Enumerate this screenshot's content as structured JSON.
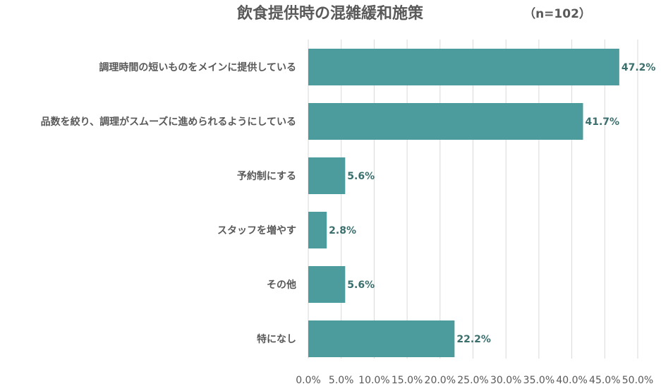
{
  "chart_data": {
    "type": "bar",
    "orientation": "horizontal",
    "title": "飲食提供時の混雑緩和施策",
    "note": "（n=102）",
    "categories": [
      "調理時間の短いものをメインに提供している",
      "品数を絞り、調理がスムーズに進められるようにしている",
      "予約制にする",
      "スタッフを増やす",
      "その他",
      "特になし"
    ],
    "values": [
      47.2,
      41.7,
      5.6,
      2.8,
      5.6,
      22.2
    ],
    "data_labels": [
      "47.2%",
      "41.7%",
      "5.6%",
      "2.8%",
      "5.6%",
      "22.2%"
    ],
    "xlim": [
      0,
      50
    ],
    "xticks": [
      0,
      5,
      10,
      15,
      20,
      25,
      30,
      35,
      40,
      45,
      50
    ],
    "xtick_labels": [
      "0.0%",
      "5.0%",
      "10.0%",
      "15.0%",
      "20.0%",
      "25.0%",
      "30.0%",
      "35.0%",
      "40.0%",
      "45.0%",
      "50.0%"
    ],
    "grid": "vertical",
    "legend": "none",
    "bar_color": "#4c9b9d",
    "label_color": "#3a6f6d"
  }
}
